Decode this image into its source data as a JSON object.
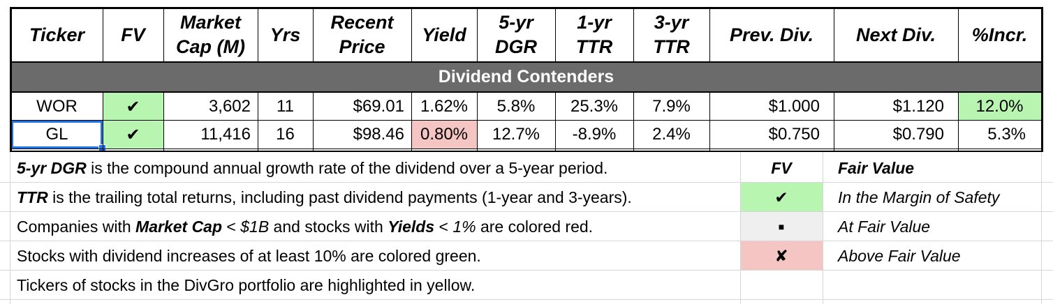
{
  "headers": {
    "ticker": "Ticker",
    "fv": "FV",
    "market_cap": "Market Cap (M)",
    "yrs": "Yrs",
    "recent_price": "Recent Price",
    "yield": "Yield",
    "dgr5": "5-yr DGR",
    "ttr1": "1-yr TTR",
    "ttr3": "3-yr TTR",
    "prev_div": "Prev. Div.",
    "next_div": "Next Div.",
    "incr": "%Incr."
  },
  "section_title": "Dividend Contenders",
  "rows": [
    {
      "ticker": "WOR",
      "fv": "✔",
      "market_cap": "3,602",
      "yrs": "11",
      "recent_price": "$69.01",
      "yield": "1.62%",
      "dgr5": "5.8%",
      "ttr1": "25.3%",
      "ttr3": "7.9%",
      "prev_div": "$1.000",
      "next_div": "$1.120",
      "incr": "12.0%"
    },
    {
      "ticker": "GL",
      "fv": "✔",
      "market_cap": "11,416",
      "yrs": "16",
      "recent_price": "$98.46",
      "yield": "0.80%",
      "dgr5": "12.7%",
      "ttr1": "-8.9%",
      "ttr3": "2.4%",
      "prev_div": "$0.750",
      "next_div": "$0.790",
      "incr": "5.3%"
    }
  ],
  "notes": {
    "n1_term": "5-yr DGR",
    "n1_rest": " is the compound annual growth rate of the dividend over a 5-year period.",
    "n2_term": "TTR",
    "n2_rest": " is the trailing total returns, including past dividend payments (1-year and 3-years).",
    "n3_a": "Companies with ",
    "n3_term1": "Market Cap",
    "n3_b": " < ",
    "n3_val1": "$1B",
    "n3_c": " and stocks with ",
    "n3_term2": "Yields",
    "n3_d": " < ",
    "n3_val2": "1%",
    "n3_e": " are colored red.",
    "n4": "Stocks with dividend increases of at least 10% are colored green.",
    "n5": "Tickers of stocks in the DivGro portfolio are highlighted in yellow."
  },
  "legend": {
    "header_symbol": "FV",
    "header_label": "Fair Value",
    "items": [
      {
        "symbol": "✔",
        "label": "In the Margin of Safety",
        "color": "#b7f5b0"
      },
      {
        "symbol": "■",
        "label": "At Fair Value",
        "color": "#efefef"
      },
      {
        "symbol": "✘",
        "label": "Above Fair Value",
        "color": "#f4c5c2"
      }
    ]
  },
  "colors": {
    "section_bar": "#6b6b6b",
    "good": "#b7f5b0",
    "bad": "#f4c5c2",
    "selection": "#1a73e8"
  }
}
